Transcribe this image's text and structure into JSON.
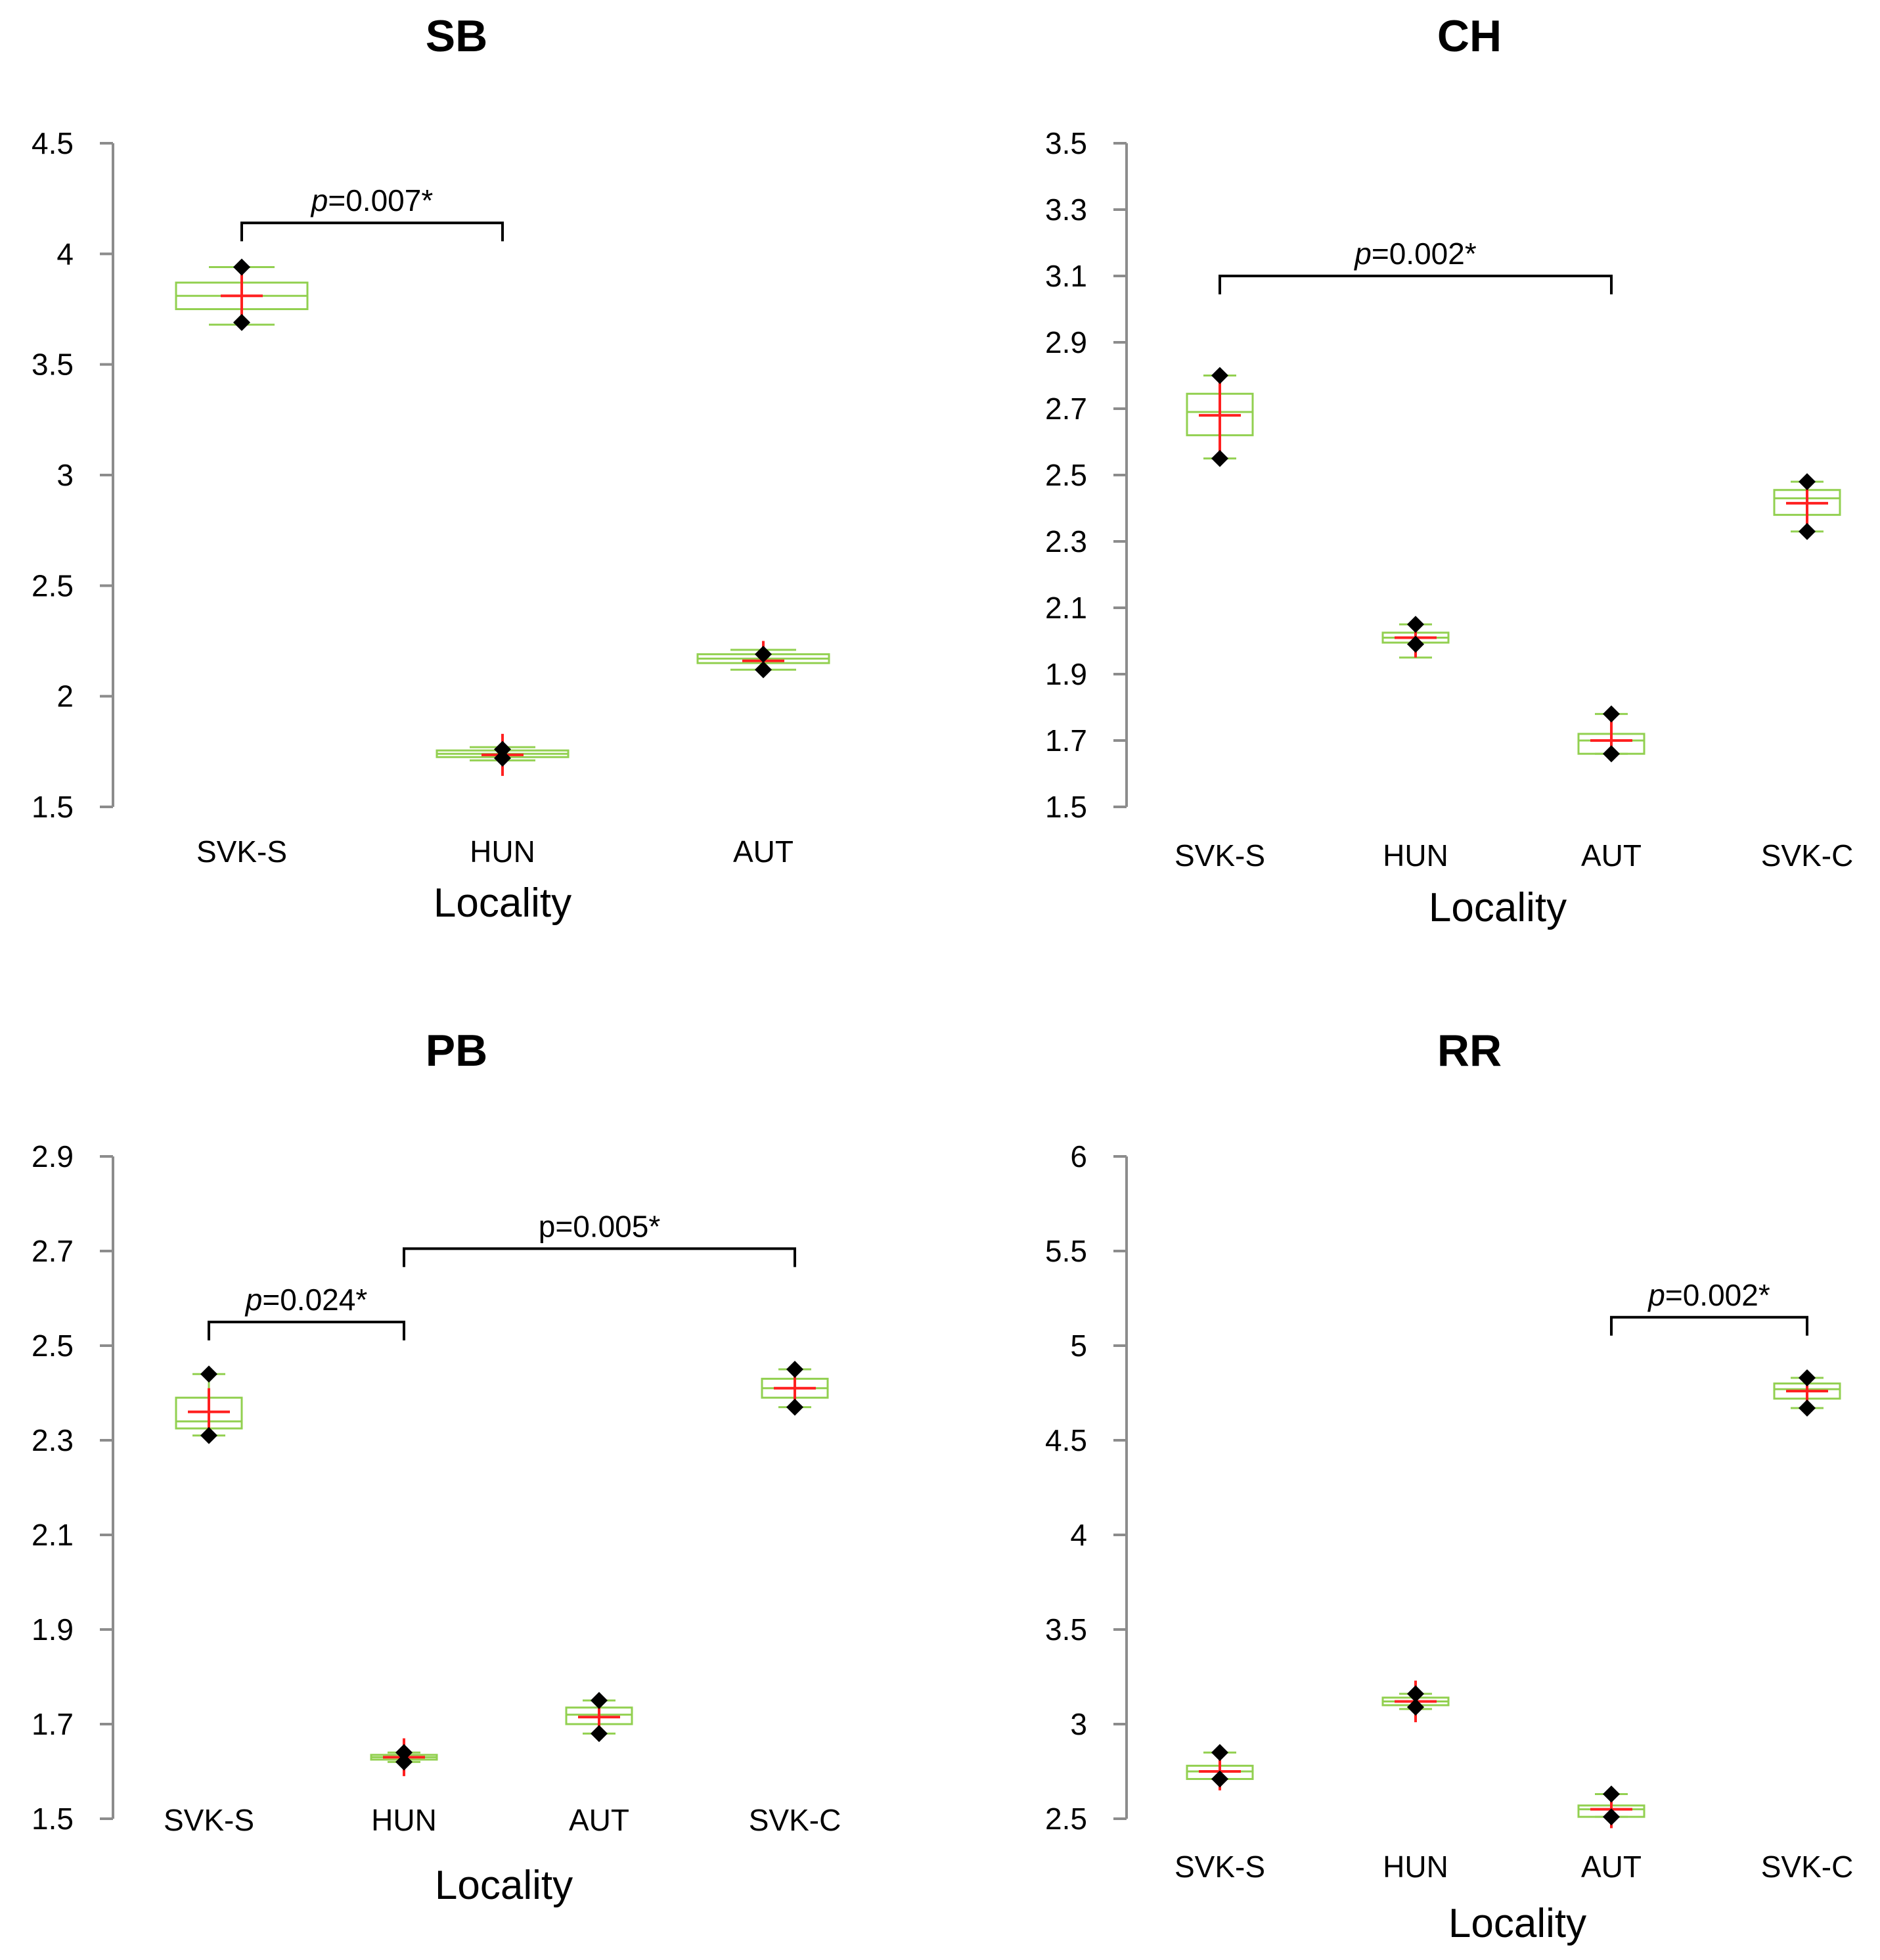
{
  "chart_data": [
    {
      "id": "SB",
      "type": "boxplot",
      "title": "SB",
      "xlabel": "Locality",
      "ylabel": "",
      "ylim": [
        1.5,
        4.5
      ],
      "yticks": [
        "1.5",
        "2",
        "2.5",
        "3",
        "3.5",
        "4",
        "4.5"
      ],
      "categories": [
        "SVK-S",
        "HUN",
        "AUT"
      ],
      "series": [
        {
          "name": "SVK-S",
          "min": 3.68,
          "q1": 3.75,
          "median": 3.81,
          "q3": 3.87,
          "max": 3.94,
          "mean": 3.81,
          "points": [
            3.94,
            3.69
          ]
        },
        {
          "name": "HUN",
          "min": 1.71,
          "q1": 1.725,
          "median": 1.74,
          "q3": 1.755,
          "max": 1.77,
          "mean": 1.735,
          "ci": [
            1.64,
            1.83
          ],
          "points": [
            1.76,
            1.72
          ]
        },
        {
          "name": "AUT",
          "min": 2.12,
          "q1": 2.15,
          "median": 2.17,
          "q3": 2.19,
          "max": 2.21,
          "mean": 2.16,
          "ci": [
            2.12,
            2.25
          ],
          "points": [
            2.19,
            2.12
          ]
        }
      ],
      "comparisons": [
        {
          "from": 0,
          "to": 1,
          "label_p": "p",
          "label_rest": "=0.007*",
          "italic_p": true,
          "y": 4.14
        }
      ]
    },
    {
      "id": "CH",
      "type": "boxplot",
      "title": "CH",
      "xlabel": "Locality",
      "ylabel": "",
      "ylim": [
        1.5,
        3.5
      ],
      "yticks": [
        "1.5",
        "1.7",
        "1.9",
        "2.1",
        "2.3",
        "2.5",
        "2.7",
        "2.9",
        "3.1",
        "3.3",
        "3.5"
      ],
      "categories": [
        "SVK-S",
        "HUN",
        "AUT",
        "SVK-C"
      ],
      "series": [
        {
          "name": "SVK-S",
          "min": 2.55,
          "q1": 2.62,
          "median": 2.69,
          "q3": 2.745,
          "max": 2.8,
          "mean": 2.68,
          "ci": [
            2.55,
            2.8
          ],
          "points": [
            2.8,
            2.55
          ]
        },
        {
          "name": "HUN",
          "min": 1.95,
          "q1": 1.995,
          "median": 2.01,
          "q3": 2.025,
          "max": 2.05,
          "mean": 2.01,
          "ci": [
            1.95,
            2.05
          ],
          "points": [
            2.05,
            1.99
          ]
        },
        {
          "name": "AUT",
          "min": 1.66,
          "q1": 1.66,
          "median": 1.7,
          "q3": 1.72,
          "max": 1.78,
          "mean": 1.7,
          "ci": [
            1.66,
            1.76
          ],
          "points": [
            1.78,
            1.66
          ]
        },
        {
          "name": "SVK-C",
          "min": 2.33,
          "q1": 2.38,
          "median": 2.43,
          "q3": 2.455,
          "max": 2.48,
          "mean": 2.415,
          "ci": [
            2.35,
            2.48
          ],
          "points": [
            2.48,
            2.33
          ]
        }
      ],
      "comparisons": [
        {
          "from": 0,
          "to": 2,
          "label_p": "p",
          "label_rest": "=0.002*",
          "italic_p": true,
          "y": 3.1
        }
      ]
    },
    {
      "id": "PB",
      "type": "boxplot",
      "title": "PB",
      "xlabel": "Locality",
      "ylabel": "",
      "ylim": [
        1.5,
        2.9
      ],
      "yticks": [
        "1.5",
        "1.7",
        "1.9",
        "2.1",
        "2.3",
        "2.5",
        "2.7",
        "2.9"
      ],
      "categories": [
        "SVK-S",
        "HUN",
        "AUT",
        "SVK-C"
      ],
      "series": [
        {
          "name": "SVK-S",
          "min": 2.31,
          "q1": 2.325,
          "median": 2.34,
          "q3": 2.39,
          "max": 2.44,
          "mean": 2.36,
          "ci": [
            2.31,
            2.41
          ],
          "points": [
            2.44,
            2.31
          ]
        },
        {
          "name": "HUN",
          "min": 1.62,
          "q1": 1.625,
          "median": 1.63,
          "q3": 1.635,
          "max": 1.64,
          "mean": 1.63,
          "ci": [
            1.59,
            1.67
          ],
          "points": [
            1.64,
            1.62
          ]
        },
        {
          "name": "AUT",
          "min": 1.68,
          "q1": 1.7,
          "median": 1.72,
          "q3": 1.735,
          "max": 1.75,
          "mean": 1.715,
          "ci": [
            1.68,
            1.75
          ],
          "points": [
            1.75,
            1.68
          ]
        },
        {
          "name": "SVK-C",
          "min": 2.37,
          "q1": 2.39,
          "median": 2.41,
          "q3": 2.43,
          "max": 2.45,
          "mean": 2.41,
          "ci": [
            2.38,
            2.44
          ],
          "points": [
            2.45,
            2.37
          ]
        }
      ],
      "comparisons": [
        {
          "from": 0,
          "to": 1,
          "label_p": "p",
          "label_rest": "=0.024*",
          "italic_p": true,
          "y": 2.55
        },
        {
          "from": 1,
          "to": 3,
          "label_p": "",
          "label_rest": "p=0.005*",
          "italic_p": false,
          "y": 2.705
        }
      ]
    },
    {
      "id": "RR",
      "type": "boxplot",
      "title": "RR",
      "xlabel": "Locality",
      "ylabel": "",
      "ylim": [
        2.5,
        6
      ],
      "yticks": [
        "2.5",
        "3",
        "3.5",
        "4",
        "4.5",
        "5",
        "5.5",
        "6"
      ],
      "categories": [
        "SVK-S",
        "HUN",
        "AUT",
        "SVK-C"
      ],
      "series": [
        {
          "name": "SVK-S",
          "min": 2.71,
          "q1": 2.71,
          "median": 2.75,
          "q3": 2.78,
          "max": 2.85,
          "mean": 2.75,
          "ci": [
            2.65,
            2.85
          ],
          "points": [
            2.85,
            2.71
          ]
        },
        {
          "name": "HUN",
          "min": 3.08,
          "q1": 3.1,
          "median": 3.12,
          "q3": 3.14,
          "max": 3.16,
          "mean": 3.12,
          "ci": [
            3.01,
            3.23
          ],
          "points": [
            3.16,
            3.09
          ]
        },
        {
          "name": "AUT",
          "min": 2.51,
          "q1": 2.51,
          "median": 2.55,
          "q3": 2.57,
          "max": 2.63,
          "mean": 2.55,
          "ci": [
            2.45,
            2.63
          ],
          "points": [
            2.63,
            2.51
          ]
        },
        {
          "name": "SVK-C",
          "min": 4.67,
          "q1": 4.72,
          "median": 4.77,
          "q3": 4.8,
          "max": 4.83,
          "mean": 4.76,
          "ci": [
            4.67,
            4.83
          ],
          "points": [
            4.83,
            4.67
          ]
        }
      ],
      "comparisons": [
        {
          "from": 2,
          "to": 3,
          "label_p": "p",
          "label_rest": "=0.002*",
          "italic_p": true,
          "y": 5.15
        }
      ]
    }
  ]
}
